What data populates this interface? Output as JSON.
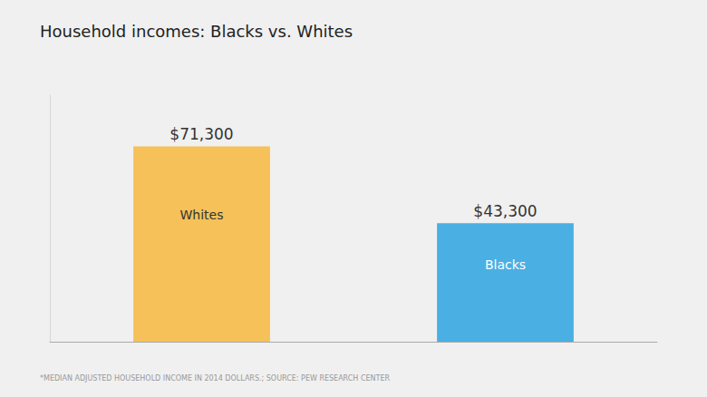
{
  "chart_data": {
    "type": "bar",
    "title": "Household incomes: Blacks vs. Whites",
    "footnote": "*MEDIAN ADJUSTED HOUSEHOLD INCOME IN 2014 DOLLARS.; SOURCE: PEW RESEARCH CENTER",
    "categories": [
      "Whites",
      "Blacks"
    ],
    "values": [
      71300,
      43300
    ],
    "value_labels": [
      "$71,300",
      "$43,300"
    ],
    "colors": [
      "#F5C158",
      "#4AAFE3"
    ],
    "data_labels": true,
    "ylim": [
      0,
      90000
    ],
    "tick_labels": false,
    "grid": false
  }
}
